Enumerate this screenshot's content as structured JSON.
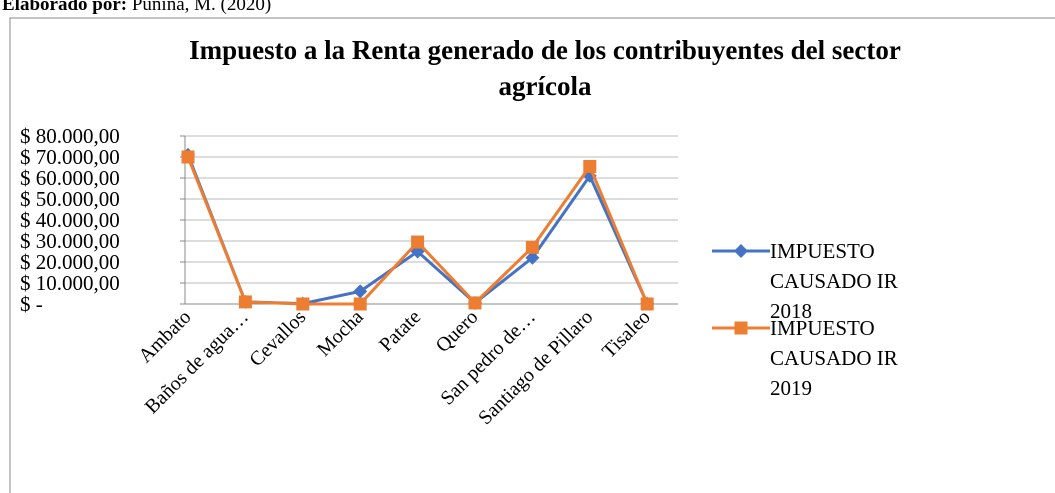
{
  "caption": {
    "label": "Elaborado por:",
    "text": "Punina, M. (2020)"
  },
  "chart_data": {
    "type": "line",
    "title": "Impuesto a la Renta generado de los contribuyentes del sector agrícola",
    "categories": [
      "Ambato",
      "Baños de agua…",
      "Cevallos",
      "Mocha",
      "Patate",
      "Quero",
      "San pedro de…",
      "Santiago de Pillaro",
      "Tisaleo"
    ],
    "series": [
      {
        "name": "IMPUESTO CAUSADO IR 2018",
        "color": "#4472c4",
        "marker": "diamond",
        "values": [
          71000,
          1000,
          200,
          6000,
          25000,
          500,
          22000,
          61000,
          200
        ]
      },
      {
        "name": "IMPUESTO CAUSADO IR 2019",
        "color": "#ed7d31",
        "marker": "square",
        "values": [
          70000,
          1000,
          0,
          0,
          29500,
          500,
          27000,
          65500,
          0
        ]
      }
    ],
    "ylim": [
      0,
      80000
    ],
    "yticks": [
      {
        "value": 0,
        "label": "$ -"
      },
      {
        "value": 10000,
        "label": "$ 10.000,00"
      },
      {
        "value": 20000,
        "label": "$ 20.000,00"
      },
      {
        "value": 30000,
        "label": "$ 30.000,00"
      },
      {
        "value": 40000,
        "label": "$ 40.000,00"
      },
      {
        "value": 50000,
        "label": "$ 50.000,00"
      },
      {
        "value": 60000,
        "label": "$ 60.000,00"
      },
      {
        "value": 70000,
        "label": "$ 70.000,00"
      },
      {
        "value": 80000,
        "label": "$ 80.000,00"
      }
    ],
    "grid": true,
    "legend": "right"
  }
}
